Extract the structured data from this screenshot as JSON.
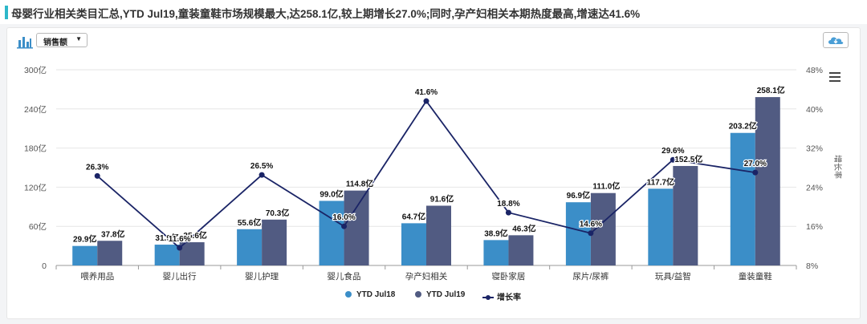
{
  "header": {
    "title": "母婴行业相关类目汇总,YTD Jul19,童装童鞋市场规模最大,达258.1亿,较上期增长27.0%;同时,孕产妇相关本期热度最高,增速达41.6%",
    "accent_color": "#2db7c9"
  },
  "toolbar": {
    "metric_select_value": "销售额",
    "chart_icon": "bar-chart-icon",
    "download_icon": "cloud-download-icon",
    "menu_icon": "hamburger-menu-icon"
  },
  "colors": {
    "series1": "#3b8ec8",
    "series2": "#515b82",
    "line": "#1a2466"
  },
  "chart_data": {
    "type": "bar",
    "categories": [
      "喂养用品",
      "婴儿出行",
      "婴儿护理",
      "婴儿食品",
      "孕产妇相关",
      "寝卧家居",
      "尿片/尿裤",
      "玩具/益智",
      "童装童鞋"
    ],
    "series": [
      {
        "name": "YTD Jul18",
        "values": [
          29.9,
          31.9,
          55.6,
          99.0,
          64.7,
          38.9,
          96.9,
          117.7,
          203.2
        ],
        "labels": [
          "29.9亿",
          "31.9亿",
          "55.6亿",
          "99.0亿",
          "64.7亿",
          "38.9亿",
          "96.9亿",
          "117.7亿",
          "203.2亿"
        ]
      },
      {
        "name": "YTD Jul19",
        "values": [
          37.8,
          35.6,
          70.3,
          114.8,
          91.6,
          46.3,
          111.0,
          152.5,
          258.1
        ],
        "labels": [
          "37.8亿",
          "35.6亿",
          "70.3亿",
          "114.8亿",
          "91.6亿",
          "46.3亿",
          "111.0亿",
          "152.5亿",
          "258.1亿"
        ]
      },
      {
        "name": "增长率",
        "type": "line",
        "axis": "right",
        "values": [
          26.3,
          11.6,
          26.5,
          16.0,
          41.6,
          18.8,
          14.6,
          29.6,
          27.0
        ],
        "labels": [
          "26.3%",
          "11.6%",
          "26.5%",
          "16.0%",
          "41.6%",
          "18.8%",
          "14.6%",
          "29.6%",
          "27.0%"
        ]
      }
    ],
    "y_left": {
      "ticks": [
        0,
        60,
        120,
        180,
        240,
        300
      ],
      "tick_labels": [
        "0",
        "60亿",
        "120亿",
        "180亿",
        "240亿",
        "300亿"
      ],
      "range": [
        0,
        300
      ]
    },
    "y_right": {
      "label": "增长率",
      "ticks": [
        8,
        16,
        24,
        32,
        40,
        48
      ],
      "tick_labels": [
        "8%",
        "16%",
        "24%",
        "32%",
        "40%",
        "48%"
      ],
      "range": [
        8,
        48
      ]
    },
    "grid": true,
    "legend_position": "bottom-center"
  }
}
